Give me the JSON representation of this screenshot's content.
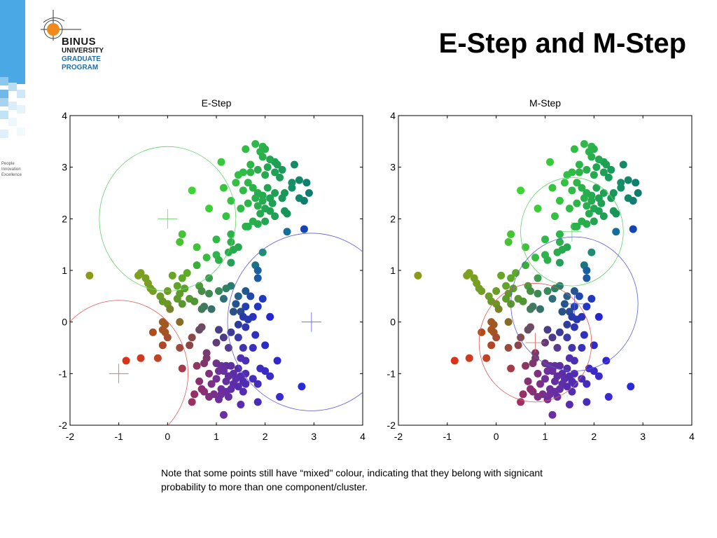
{
  "slide": {
    "title": "E-Step and M-Step",
    "note": "Note that some points still have “mixed\" colour, indicating that they belong with signicant probability to more than one component/cluster."
  },
  "logo": {
    "line1": "BINUS",
    "line2": "UNIVERSITY",
    "line3": "GRADUATE",
    "line4": "PROGRAM",
    "tagline": [
      "People",
      "Innovation",
      "Excellence"
    ]
  },
  "colors": {
    "accent_blue": "#1e6fb0",
    "strip_blue": "#5aaee0",
    "logo_orange": "#f08a1c"
  },
  "chart_data": [
    {
      "type": "scatter",
      "title": "E-Step",
      "xlabel": "",
      "ylabel": "",
      "xlim": [
        -2,
        4
      ],
      "ylim": [
        -2,
        4
      ],
      "xticks": [
        "-2",
        "-1",
        "0",
        "1",
        "2",
        "3",
        "4"
      ],
      "yticks": [
        "-2",
        "-1",
        "0",
        "1",
        "2",
        "3",
        "4"
      ],
      "grid": false,
      "components": [
        {
          "center": [
            0.0,
            2.0
          ],
          "radius": 1.4,
          "color": "#5fd36a"
        },
        {
          "center": [
            2.95,
            0.0
          ],
          "radius": 1.72,
          "color": "#5a5ae0"
        },
        {
          "center": [
            -1.0,
            -1.0
          ],
          "radius": 1.42,
          "color": "#e05a5a"
        }
      ]
    },
    {
      "type": "scatter",
      "title": "M-Step",
      "xlabel": "",
      "ylabel": "",
      "xlim": [
        -2,
        4
      ],
      "ylim": [
        -2,
        4
      ],
      "xticks": [
        "-2",
        "-1",
        "0",
        "1",
        "2",
        "3",
        "4"
      ],
      "yticks": [
        "-2",
        "-1",
        "0",
        "1",
        "2",
        "3",
        "4"
      ],
      "grid": false,
      "components": [
        {
          "center": [
            1.55,
            1.75
          ],
          "radius": 1.05,
          "color": "#5fd36a"
        },
        {
          "center": [
            1.6,
            0.35
          ],
          "radius": 1.3,
          "color": "#5a5ae0"
        },
        {
          "center": [
            0.8,
            -0.4
          ],
          "radius": 1.15,
          "color": "#e05a5a"
        }
      ]
    }
  ],
  "points": [
    {
      "x": 1.8,
      "y": 3.45,
      "c": "#2fb84a"
    },
    {
      "x": 1.95,
      "y": 3.4,
      "c": "#2bb44a"
    },
    {
      "x": 2.0,
      "y": 3.35,
      "c": "#27b04c"
    },
    {
      "x": 1.6,
      "y": 3.35,
      "c": "#2fbe44"
    },
    {
      "x": 1.9,
      "y": 3.3,
      "c": "#2bb24a"
    },
    {
      "x": 2.2,
      "y": 3.1,
      "c": "#1ea055"
    },
    {
      "x": 2.25,
      "y": 3.05,
      "c": "#1ea055"
    },
    {
      "x": 2.6,
      "y": 3.05,
      "c": "#148a6a"
    },
    {
      "x": 1.1,
      "y": 3.1,
      "c": "#38c83c"
    },
    {
      "x": 1.95,
      "y": 3.2,
      "c": "#28b04d"
    },
    {
      "x": 2.1,
      "y": 3.15,
      "c": "#23a851"
    },
    {
      "x": 1.7,
      "y": 3.05,
      "c": "#2cb648"
    },
    {
      "x": 2.05,
      "y": 3.0,
      "c": "#23a652"
    },
    {
      "x": 2.35,
      "y": 2.95,
      "c": "#1b9a5c"
    },
    {
      "x": 1.85,
      "y": 2.95,
      "c": "#28ae4d"
    },
    {
      "x": 2.2,
      "y": 2.9,
      "c": "#1fa055"
    },
    {
      "x": 1.55,
      "y": 2.9,
      "c": "#2fbc45"
    },
    {
      "x": 1.45,
      "y": 2.85,
      "c": "#31be44"
    },
    {
      "x": 1.7,
      "y": 2.9,
      "c": "#2db648"
    },
    {
      "x": 2.0,
      "y": 2.85,
      "c": "#25aa50"
    },
    {
      "x": 2.3,
      "y": 2.8,
      "c": "#1c9c5a"
    },
    {
      "x": 1.4,
      "y": 2.7,
      "c": "#33c043"
    },
    {
      "x": 1.65,
      "y": 2.7,
      "c": "#2db648"
    },
    {
      "x": 2.55,
      "y": 2.7,
      "c": "#168e66"
    },
    {
      "x": 2.7,
      "y": 2.75,
      "c": "#138868"
    },
    {
      "x": 2.85,
      "y": 2.7,
      "c": "#10806e"
    },
    {
      "x": 1.75,
      "y": 2.6,
      "c": "#2ab24b"
    },
    {
      "x": 2.05,
      "y": 2.6,
      "c": "#22a453"
    },
    {
      "x": 2.55,
      "y": 2.6,
      "c": "#168e66"
    },
    {
      "x": 1.15,
      "y": 2.6,
      "c": "#36c63e"
    },
    {
      "x": 1.55,
      "y": 2.55,
      "c": "#30ba46"
    },
    {
      "x": 1.85,
      "y": 2.5,
      "c": "#27ae4d"
    },
    {
      "x": 2.2,
      "y": 2.5,
      "c": "#1ea055"
    },
    {
      "x": 2.4,
      "y": 2.5,
      "c": "#199658"
    },
    {
      "x": 2.9,
      "y": 2.5,
      "c": "#0f7c70"
    },
    {
      "x": 0.5,
      "y": 2.55,
      "c": "#3ed434"
    },
    {
      "x": 1.95,
      "y": 2.45,
      "c": "#25aa50"
    },
    {
      "x": 2.1,
      "y": 2.4,
      "c": "#20a254"
    },
    {
      "x": 1.8,
      "y": 2.4,
      "c": "#28b04c"
    },
    {
      "x": 2.35,
      "y": 2.4,
      "c": "#1a985a"
    },
    {
      "x": 2.7,
      "y": 2.4,
      "c": "#128668"
    },
    {
      "x": 2.8,
      "y": 2.35,
      "c": "#0f7e70"
    },
    {
      "x": 1.3,
      "y": 2.35,
      "c": "#34c242"
    },
    {
      "x": 1.95,
      "y": 2.35,
      "c": "#25aa50"
    },
    {
      "x": 2.15,
      "y": 2.3,
      "c": "#1fa055"
    },
    {
      "x": 1.65,
      "y": 2.3,
      "c": "#2cb648"
    },
    {
      "x": 1.85,
      "y": 2.25,
      "c": "#28ae4d"
    },
    {
      "x": 2.0,
      "y": 2.2,
      "c": "#23a652"
    },
    {
      "x": 1.5,
      "y": 2.2,
      "c": "#30ba46"
    },
    {
      "x": 0.85,
      "y": 2.2,
      "c": "#3cce36"
    },
    {
      "x": 2.1,
      "y": 2.15,
      "c": "#20a254"
    },
    {
      "x": 1.9,
      "y": 2.1,
      "c": "#25aa50"
    },
    {
      "x": 2.4,
      "y": 2.15,
      "c": "#1a985a"
    },
    {
      "x": 2.45,
      "y": 2.1,
      "c": "#189458"
    },
    {
      "x": 1.2,
      "y": 2.05,
      "c": "#34c242"
    },
    {
      "x": 2.2,
      "y": 2.05,
      "c": "#1ea055"
    },
    {
      "x": 1.75,
      "y": 1.95,
      "c": "#28b04c"
    },
    {
      "x": 2.0,
      "y": 1.95,
      "c": "#22a453"
    },
    {
      "x": 1.85,
      "y": 1.9,
      "c": "#27ac4e"
    },
    {
      "x": 1.65,
      "y": 1.85,
      "c": "#29b04b"
    },
    {
      "x": 1.6,
      "y": 1.85,
      "c": "#2ab24a"
    },
    {
      "x": 2.45,
      "y": 1.75,
      "c": "#136e98"
    },
    {
      "x": 2.8,
      "y": 1.8,
      "c": "#1346b0"
    },
    {
      "x": 0.3,
      "y": 1.7,
      "c": "#44c432"
    },
    {
      "x": 1.3,
      "y": 1.7,
      "c": "#2cb44a"
    },
    {
      "x": 1.0,
      "y": 1.6,
      "c": "#30b84a"
    },
    {
      "x": 1.3,
      "y": 1.55,
      "c": "#2bb04c"
    },
    {
      "x": 0.25,
      "y": 1.55,
      "c": "#46c232"
    },
    {
      "x": 1.45,
      "y": 1.45,
      "c": "#25a650"
    },
    {
      "x": 0.6,
      "y": 1.45,
      "c": "#42c038"
    },
    {
      "x": 1.35,
      "y": 1.4,
      "c": "#27aa4e"
    },
    {
      "x": 1.25,
      "y": 1.35,
      "c": "#28ac4d"
    },
    {
      "x": 1.0,
      "y": 1.3,
      "c": "#2eb44a"
    },
    {
      "x": 1.95,
      "y": 1.35,
      "c": "#1f8e70"
    },
    {
      "x": 0.8,
      "y": 1.25,
      "c": "#38bc40"
    },
    {
      "x": 1.05,
      "y": 1.2,
      "c": "#2cb04c"
    },
    {
      "x": 1.3,
      "y": 1.15,
      "c": "#289e5a"
    },
    {
      "x": 0.6,
      "y": 1.1,
      "c": "#3aae38"
    },
    {
      "x": 1.8,
      "y": 1.1,
      "c": "#1a7484"
    },
    {
      "x": 1.85,
      "y": 1.0,
      "c": "#1a5fa0"
    },
    {
      "x": 0.4,
      "y": 0.95,
      "c": "#5eaa28"
    },
    {
      "x": -0.55,
      "y": 0.95,
      "c": "#7da020"
    },
    {
      "x": -0.6,
      "y": 0.9,
      "c": "#7ea020"
    },
    {
      "x": -1.6,
      "y": 0.9,
      "c": "#8a9a18"
    },
    {
      "x": 0.1,
      "y": 0.9,
      "c": "#68a426"
    },
    {
      "x": 0.85,
      "y": 0.85,
      "c": "#3a9c50"
    },
    {
      "x": -0.45,
      "y": 0.85,
      "c": "#7a9e22"
    },
    {
      "x": 0.3,
      "y": 0.85,
      "c": "#5ea82a"
    },
    {
      "x": 1.85,
      "y": 0.85,
      "c": "#1d5aa4"
    },
    {
      "x": -0.4,
      "y": 0.75,
      "c": "#789e24"
    },
    {
      "x": 0.2,
      "y": 0.7,
      "c": "#62a428"
    },
    {
      "x": 0.65,
      "y": 0.7,
      "c": "#4a9a3c"
    },
    {
      "x": 1.3,
      "y": 0.7,
      "c": "#2a7a70"
    },
    {
      "x": -0.35,
      "y": 0.65,
      "c": "#769e24"
    },
    {
      "x": 0.35,
      "y": 0.65,
      "c": "#5aa02c"
    },
    {
      "x": 0.7,
      "y": 0.6,
      "c": "#468e48"
    },
    {
      "x": -0.3,
      "y": 0.6,
      "c": "#749c26"
    },
    {
      "x": 1.2,
      "y": 0.65,
      "c": "#2e8262"
    },
    {
      "x": 1.6,
      "y": 0.6,
      "c": "#24568c"
    },
    {
      "x": 1.05,
      "y": 0.6,
      "c": "#388a58"
    },
    {
      "x": 0.0,
      "y": 0.6,
      "c": "#6a9e26"
    },
    {
      "x": 0.25,
      "y": 0.55,
      "c": "#609a2a"
    },
    {
      "x": 0.85,
      "y": 0.55,
      "c": "#3e8852"
    },
    {
      "x": 1.45,
      "y": 0.5,
      "c": "#25608c"
    },
    {
      "x": 1.7,
      "y": 0.5,
      "c": "#2048a8"
    },
    {
      "x": -0.15,
      "y": 0.5,
      "c": "#6e9c26"
    },
    {
      "x": 0.45,
      "y": 0.45,
      "c": "#54982e"
    },
    {
      "x": 0.55,
      "y": 0.4,
      "c": "#509434"
    },
    {
      "x": 0.2,
      "y": 0.45,
      "c": "#5e9a2a"
    },
    {
      "x": 1.15,
      "y": 0.45,
      "c": "#2e6e76"
    },
    {
      "x": 1.95,
      "y": 0.45,
      "c": "#2038c0"
    },
    {
      "x": -0.1,
      "y": 0.4,
      "c": "#6a9826"
    },
    {
      "x": 0.3,
      "y": 0.35,
      "c": "#5c9630"
    },
    {
      "x": 0.0,
      "y": 0.35,
      "c": "#689826"
    },
    {
      "x": 1.4,
      "y": 0.35,
      "c": "#26528e"
    },
    {
      "x": 0.75,
      "y": 0.3,
      "c": "#3e7a60"
    },
    {
      "x": 1.6,
      "y": 0.3,
      "c": "#2240b0"
    },
    {
      "x": 1.85,
      "y": 0.3,
      "c": "#2234c4"
    },
    {
      "x": 0.7,
      "y": 0.25,
      "c": "#427a5c"
    },
    {
      "x": 0.05,
      "y": 0.25,
      "c": "#78822a"
    },
    {
      "x": 0.9,
      "y": 0.25,
      "c": "#38706a"
    },
    {
      "x": 1.5,
      "y": 0.2,
      "c": "#2a4a94"
    },
    {
      "x": 1.35,
      "y": 0.2,
      "c": "#2c5284"
    },
    {
      "x": 1.55,
      "y": 0.1,
      "c": "#283aa8"
    },
    {
      "x": 1.65,
      "y": 0.05,
      "c": "#2838b0"
    },
    {
      "x": 2.1,
      "y": 0.1,
      "c": "#2424d0"
    },
    {
      "x": 1.75,
      "y": 0.1,
      "c": "#2832bc"
    },
    {
      "x": 0.25,
      "y": 0.0,
      "c": "#886a2a"
    },
    {
      "x": -0.1,
      "y": 0.0,
      "c": "#a05a24"
    },
    {
      "x": -0.05,
      "y": -0.05,
      "c": "#a25822"
    },
    {
      "x": 1.45,
      "y": -0.05,
      "c": "#2e3c9c"
    },
    {
      "x": 1.6,
      "y": -0.1,
      "c": "#3036b0"
    },
    {
      "x": 0.7,
      "y": -0.1,
      "c": "#704a60"
    },
    {
      "x": 0.65,
      "y": -0.15,
      "c": "#6a4c64"
    },
    {
      "x": -0.1,
      "y": -0.15,
      "c": "#a85420"
    },
    {
      "x": 1.05,
      "y": -0.15,
      "c": "#4a3e8a"
    },
    {
      "x": 1.3,
      "y": -0.2,
      "c": "#3c3c98"
    },
    {
      "x": -0.05,
      "y": -0.2,
      "c": "#a25424"
    },
    {
      "x": -0.3,
      "y": -0.2,
      "c": "#b04c1c"
    },
    {
      "x": 1.8,
      "y": -0.25,
      "c": "#2e30c0"
    },
    {
      "x": 1.45,
      "y": -0.3,
      "c": "#3a3aa8"
    },
    {
      "x": 0.5,
      "y": -0.3,
      "c": "#884a48"
    },
    {
      "x": 0.0,
      "y": -0.3,
      "c": "#a24e30"
    },
    {
      "x": 1.15,
      "y": -0.3,
      "c": "#4e3c88"
    },
    {
      "x": 1.0,
      "y": -0.4,
      "c": "#603c78"
    },
    {
      "x": 2.0,
      "y": -0.45,
      "c": "#2c2cc8"
    },
    {
      "x": 0.45,
      "y": -0.45,
      "c": "#8c4648"
    },
    {
      "x": -0.1,
      "y": -0.45,
      "c": "#b04828"
    },
    {
      "x": 1.25,
      "y": -0.5,
      "c": "#583a90"
    },
    {
      "x": 1.55,
      "y": -0.5,
      "c": "#4234ac"
    },
    {
      "x": 0.25,
      "y": -0.5,
      "c": "#9c4a3e"
    },
    {
      "x": 1.75,
      "y": -0.5,
      "c": "#3830bc"
    },
    {
      "x": 0.8,
      "y": -0.6,
      "c": "#7a3c6e"
    },
    {
      "x": -0.2,
      "y": -0.7,
      "c": "#c04424"
    },
    {
      "x": 0.8,
      "y": -0.7,
      "c": "#7c3a6c"
    },
    {
      "x": -0.55,
      "y": -0.7,
      "c": "#d03a1e"
    },
    {
      "x": -0.85,
      "y": -0.75,
      "c": "#d8341c"
    },
    {
      "x": 1.5,
      "y": -0.7,
      "c": "#5030ac"
    },
    {
      "x": 1.6,
      "y": -0.75,
      "c": "#4a2eb4"
    },
    {
      "x": 2.25,
      "y": -0.75,
      "c": "#3028cc"
    },
    {
      "x": 0.75,
      "y": -0.8,
      "c": "#80366c"
    },
    {
      "x": 1.0,
      "y": -0.8,
      "c": "#6e3486"
    },
    {
      "x": 1.1,
      "y": -0.85,
      "c": "#683296"
    },
    {
      "x": 1.2,
      "y": -0.85,
      "c": "#623098"
    },
    {
      "x": 1.3,
      "y": -0.85,
      "c": "#5c309e"
    },
    {
      "x": 0.6,
      "y": -0.85,
      "c": "#8c3660"
    },
    {
      "x": 1.45,
      "y": -0.9,
      "c": "#552ea6"
    },
    {
      "x": 1.9,
      "y": -0.9,
      "c": "#3e2cc2"
    },
    {
      "x": 2.0,
      "y": -0.95,
      "c": "#3a2ac4"
    },
    {
      "x": 0.3,
      "y": -0.9,
      "c": "#a43a4a"
    },
    {
      "x": 1.05,
      "y": -0.95,
      "c": "#70309a"
    },
    {
      "x": 1.15,
      "y": -0.95,
      "c": "#68309c"
    },
    {
      "x": 1.35,
      "y": -1.0,
      "c": "#5c2ea6"
    },
    {
      "x": 1.6,
      "y": -1.0,
      "c": "#502cb2"
    },
    {
      "x": 0.85,
      "y": -1.0,
      "c": "#80307a"
    },
    {
      "x": 1.25,
      "y": -1.05,
      "c": "#622ea2"
    },
    {
      "x": 1.5,
      "y": -1.05,
      "c": "#542cae"
    },
    {
      "x": 2.1,
      "y": -1.05,
      "c": "#3a2ac6"
    },
    {
      "x": 1.75,
      "y": -1.1,
      "c": "#482cba"
    },
    {
      "x": 1.0,
      "y": -1.1,
      "c": "#72309a"
    },
    {
      "x": 1.4,
      "y": -1.1,
      "c": "#5a2eaa"
    },
    {
      "x": 0.65,
      "y": -1.15,
      "c": "#8a3070"
    },
    {
      "x": 1.55,
      "y": -1.15,
      "c": "#522cb0"
    },
    {
      "x": 1.2,
      "y": -1.15,
      "c": "#642ea0"
    },
    {
      "x": 1.85,
      "y": -1.2,
      "c": "#442cbc"
    },
    {
      "x": 0.9,
      "y": -1.2,
      "c": "#7c3088"
    },
    {
      "x": 1.35,
      "y": -1.2,
      "c": "#5e2ea8"
    },
    {
      "x": 1.6,
      "y": -1.2,
      "c": "#502cb2"
    },
    {
      "x": 1.45,
      "y": -1.25,
      "c": "#562cae"
    },
    {
      "x": 2.75,
      "y": -1.25,
      "c": "#2a2ad8"
    },
    {
      "x": 1.1,
      "y": -1.3,
      "c": "#6c2e9e"
    },
    {
      "x": 0.7,
      "y": -1.3,
      "c": "#8a3070"
    },
    {
      "x": 1.3,
      "y": -1.3,
      "c": "#602ea6"
    },
    {
      "x": 0.75,
      "y": -1.35,
      "c": "#883072"
    },
    {
      "x": 1.55,
      "y": -1.35,
      "c": "#542cb0"
    },
    {
      "x": 1.2,
      "y": -1.35,
      "c": "#662ea2"
    },
    {
      "x": 0.95,
      "y": -1.4,
      "c": "#7a2e8c"
    },
    {
      "x": 1.1,
      "y": -1.4,
      "c": "#6e2e9c"
    },
    {
      "x": 0.55,
      "y": -1.4,
      "c": "#943068"
    },
    {
      "x": 1.25,
      "y": -1.45,
      "c": "#642ea4"
    },
    {
      "x": 0.85,
      "y": -1.45,
      "c": "#803080"
    },
    {
      "x": 2.3,
      "y": -1.45,
      "c": "#3a2ad0"
    },
    {
      "x": 1.05,
      "y": -1.5,
      "c": "#702e9c"
    },
    {
      "x": 1.85,
      "y": -1.55,
      "c": "#482cbc"
    },
    {
      "x": 0.5,
      "y": -1.55,
      "c": "#9c305e"
    },
    {
      "x": 1.5,
      "y": -1.6,
      "c": "#582cae"
    },
    {
      "x": 1.15,
      "y": -1.8,
      "c": "#6a2ea0"
    }
  ]
}
